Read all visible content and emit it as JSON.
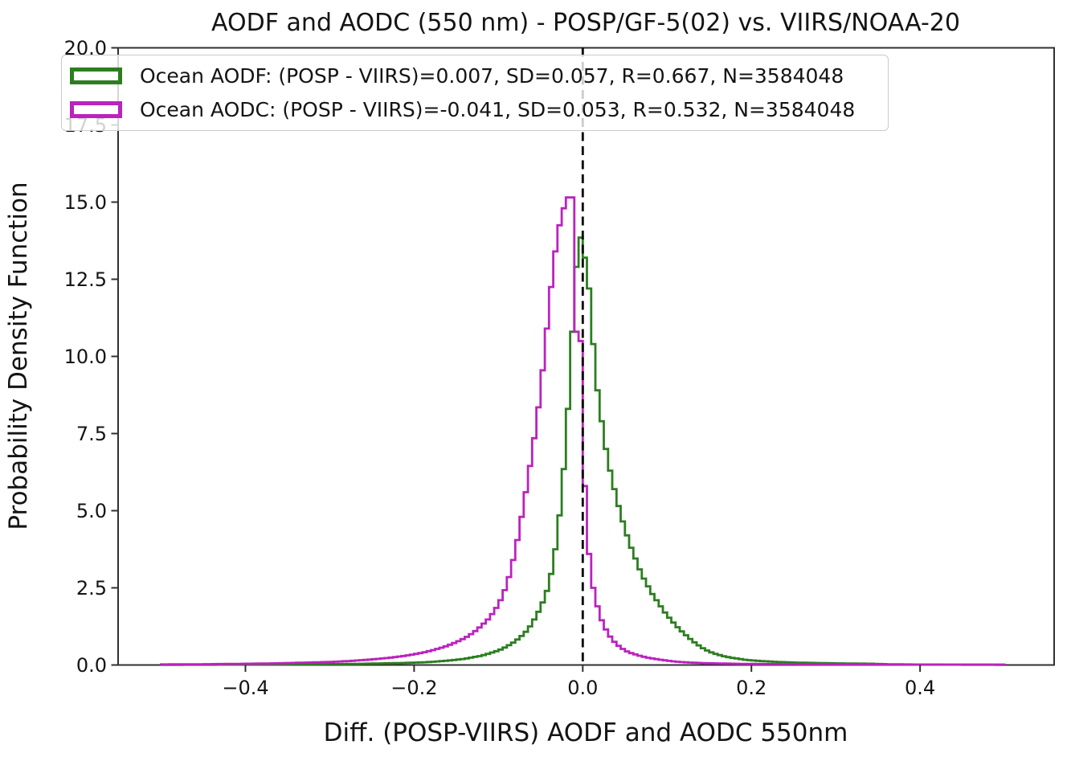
{
  "chart_data": {
    "type": "step_histogram_line",
    "title": "AODF and AODC (550 nm) - POSP/GF-5(02) vs. VIIRS/NOAA-20",
    "xlabel": "Diff. (POSP-VIIRS) AODF and AODC 550nm",
    "ylabel": "Probability Density Function",
    "xlim": [
      -0.551,
      0.559
    ],
    "ylim": [
      0,
      20
    ],
    "hist_range": [
      -0.5,
      0.5
    ],
    "bin_width": 0.005,
    "grid": false,
    "legend_position": "upper left",
    "x_ticks": [
      {
        "value": -0.4,
        "label": "−0.4"
      },
      {
        "value": -0.2,
        "label": "−0.2"
      },
      {
        "value": 0.0,
        "label": "0.0"
      },
      {
        "value": 0.2,
        "label": "0.2"
      },
      {
        "value": 0.4,
        "label": "0.4"
      }
    ],
    "y_ticks": [
      {
        "value": 0.0,
        "label": "0.0"
      },
      {
        "value": 2.5,
        "label": "2.5"
      },
      {
        "value": 5.0,
        "label": "5.0"
      },
      {
        "value": 7.5,
        "label": "7.5"
      },
      {
        "value": 10.0,
        "label": "10.0"
      },
      {
        "value": 12.5,
        "label": "12.5"
      },
      {
        "value": 15.0,
        "label": "15.0"
      },
      {
        "value": 17.5,
        "label": "17.5"
      },
      {
        "value": 20.0,
        "label": "20.0"
      }
    ],
    "reference_line": {
      "x": 0.0,
      "style": "dashed",
      "color": "#000000"
    },
    "colors": {
      "spine": "#303030",
      "text": "#141414",
      "legend_border": "#cbcbcb",
      "legend_background": "rgba(255,255,255,0.8)"
    },
    "series": [
      {
        "name": "Ocean AODF",
        "legend_label": "Ocean AODF: (POSP - VIIRS)=0.007, SD=0.057, R=0.667, N=3584048",
        "color": "#2C7E20",
        "stats": {
          "bias": 0.007,
          "sd": 0.057,
          "r": 0.667,
          "n": 3584048
        },
        "points": [
          [
            -0.5,
            0.005
          ],
          [
            -0.45,
            0.008
          ],
          [
            -0.4,
            0.012
          ],
          [
            -0.36,
            0.017
          ],
          [
            -0.33,
            0.022
          ],
          [
            -0.3,
            0.028
          ],
          [
            -0.28,
            0.033
          ],
          [
            -0.26,
            0.04
          ],
          [
            -0.24,
            0.05
          ],
          [
            -0.22,
            0.06
          ],
          [
            -0.2,
            0.075
          ],
          [
            -0.19,
            0.085
          ],
          [
            -0.18,
            0.1
          ],
          [
            -0.17,
            0.12
          ],
          [
            -0.16,
            0.14
          ],
          [
            -0.15,
            0.17
          ],
          [
            -0.14,
            0.2
          ],
          [
            -0.13,
            0.25
          ],
          [
            -0.12,
            0.3
          ],
          [
            -0.11,
            0.38
          ],
          [
            -0.1,
            0.47
          ],
          [
            -0.095,
            0.53
          ],
          [
            -0.09,
            0.6
          ],
          [
            -0.085,
            0.68
          ],
          [
            -0.08,
            0.77
          ],
          [
            -0.075,
            0.88
          ],
          [
            -0.07,
            1.0
          ],
          [
            -0.065,
            1.15
          ],
          [
            -0.06,
            1.35
          ],
          [
            -0.055,
            1.6
          ],
          [
            -0.05,
            1.85
          ],
          [
            -0.045,
            2.2
          ],
          [
            -0.04,
            2.6
          ],
          [
            -0.035,
            3.3
          ],
          [
            -0.03,
            4.2
          ],
          [
            -0.025,
            5.5
          ],
          [
            -0.02,
            7.2
          ],
          [
            -0.015,
            9.4
          ],
          [
            -0.0125,
            10.8
          ],
          [
            -0.0075,
            12.9
          ],
          [
            -0.0025,
            13.85
          ],
          [
            0.0025,
            13.2
          ],
          [
            0.0075,
            12.2
          ],
          [
            0.0125,
            10.4
          ],
          [
            0.0175,
            8.9
          ],
          [
            0.0225,
            7.9
          ],
          [
            0.0275,
            7.0
          ],
          [
            0.0325,
            6.3
          ],
          [
            0.0375,
            5.7
          ],
          [
            0.0425,
            5.15
          ],
          [
            0.0475,
            4.65
          ],
          [
            0.0525,
            4.2
          ],
          [
            0.0575,
            3.8
          ],
          [
            0.0625,
            3.45
          ],
          [
            0.0675,
            3.1
          ],
          [
            0.0725,
            2.8
          ],
          [
            0.0775,
            2.55
          ],
          [
            0.0825,
            2.3
          ],
          [
            0.0875,
            2.1
          ],
          [
            0.0925,
            1.9
          ],
          [
            0.0975,
            1.7
          ],
          [
            0.105,
            1.45
          ],
          [
            0.115,
            1.15
          ],
          [
            0.125,
            0.9
          ],
          [
            0.135,
            0.68
          ],
          [
            0.145,
            0.5
          ],
          [
            0.155,
            0.38
          ],
          [
            0.165,
            0.3
          ],
          [
            0.175,
            0.24
          ],
          [
            0.185,
            0.2
          ],
          [
            0.195,
            0.16
          ],
          [
            0.21,
            0.13
          ],
          [
            0.23,
            0.1
          ],
          [
            0.25,
            0.08
          ],
          [
            0.27,
            0.068
          ],
          [
            0.29,
            0.058
          ],
          [
            0.31,
            0.05
          ],
          [
            0.33,
            0.044
          ],
          [
            0.345,
            0.04
          ],
          [
            0.36,
            0.025
          ],
          [
            0.4,
            0.015
          ],
          [
            0.45,
            0.009
          ],
          [
            0.5,
            0.006
          ]
        ]
      },
      {
        "name": "Ocean AODC",
        "legend_label": "Ocean AODC: (POSP - VIIRS)=-0.041, SD=0.053, R=0.532, N=3584048",
        "color": "#BB22BE",
        "stats": {
          "bias": -0.041,
          "sd": 0.053,
          "r": 0.532,
          "n": 3584048
        },
        "points": [
          [
            -0.5,
            0.018
          ],
          [
            -0.45,
            0.025
          ],
          [
            -0.4,
            0.04
          ],
          [
            -0.37,
            0.05
          ],
          [
            -0.34,
            0.07
          ],
          [
            -0.31,
            0.09
          ],
          [
            -0.29,
            0.11
          ],
          [
            -0.27,
            0.14
          ],
          [
            -0.25,
            0.18
          ],
          [
            -0.23,
            0.23
          ],
          [
            -0.21,
            0.3
          ],
          [
            -0.195,
            0.37
          ],
          [
            -0.185,
            0.43
          ],
          [
            -0.175,
            0.5
          ],
          [
            -0.165,
            0.58
          ],
          [
            -0.155,
            0.68
          ],
          [
            -0.145,
            0.8
          ],
          [
            -0.135,
            0.95
          ],
          [
            -0.13,
            1.05
          ],
          [
            -0.125,
            1.15
          ],
          [
            -0.12,
            1.28
          ],
          [
            -0.115,
            1.4
          ],
          [
            -0.11,
            1.55
          ],
          [
            -0.105,
            1.75
          ],
          [
            -0.1,
            1.95
          ],
          [
            -0.095,
            2.25
          ],
          [
            -0.09,
            2.6
          ],
          [
            -0.085,
            3.1
          ],
          [
            -0.08,
            3.7
          ],
          [
            -0.075,
            4.4
          ],
          [
            -0.07,
            5.2
          ],
          [
            -0.065,
            6.0
          ],
          [
            -0.06,
            6.9
          ],
          [
            -0.055,
            7.8
          ],
          [
            -0.05,
            8.9
          ],
          [
            -0.045,
            10.2
          ],
          [
            -0.04,
            11.6
          ],
          [
            -0.035,
            12.9
          ],
          [
            -0.03,
            13.9
          ],
          [
            -0.025,
            14.6
          ],
          [
            -0.02,
            15.0
          ],
          [
            -0.0175,
            15.15
          ],
          [
            -0.0125,
            15.15
          ],
          [
            -0.0075,
            10.8
          ],
          [
            -0.0025,
            10.5
          ],
          [
            0.0025,
            5.8
          ],
          [
            0.0075,
            3.6
          ],
          [
            0.0125,
            2.5
          ],
          [
            0.0175,
            1.9
          ],
          [
            0.0225,
            1.45
          ],
          [
            0.0275,
            1.15
          ],
          [
            0.0325,
            0.92
          ],
          [
            0.0375,
            0.75
          ],
          [
            0.0425,
            0.62
          ],
          [
            0.0475,
            0.52
          ],
          [
            0.0525,
            0.44
          ],
          [
            0.06,
            0.36
          ],
          [
            0.07,
            0.28
          ],
          [
            0.08,
            0.22
          ],
          [
            0.09,
            0.18
          ],
          [
            0.1,
            0.14
          ],
          [
            0.11,
            0.11
          ],
          [
            0.12,
            0.09
          ],
          [
            0.13,
            0.075
          ],
          [
            0.145,
            0.06
          ],
          [
            0.16,
            0.05
          ],
          [
            0.18,
            0.04
          ],
          [
            0.2,
            0.033
          ],
          [
            0.25,
            0.025
          ],
          [
            0.3,
            0.02
          ],
          [
            0.4,
            0.015
          ],
          [
            0.5,
            0.012
          ]
        ]
      }
    ]
  }
}
